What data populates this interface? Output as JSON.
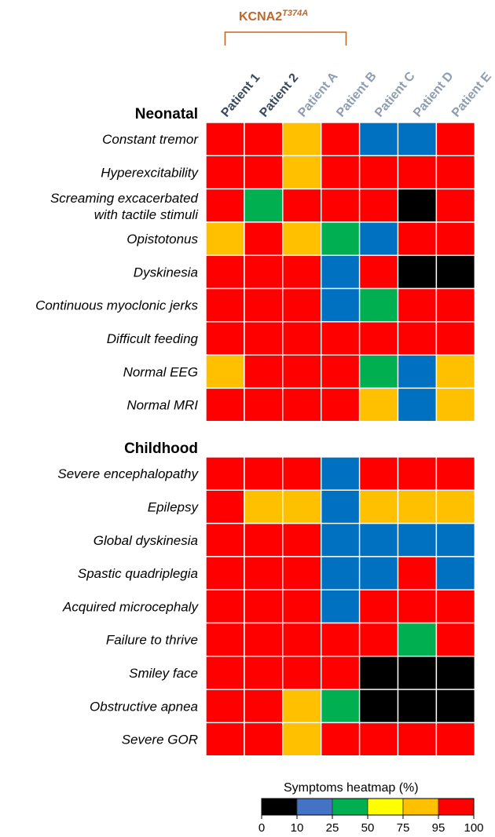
{
  "chart_data": {
    "type": "heatmap",
    "title": "",
    "group_label": {
      "text": "KCNA2",
      "superscript": "T374A",
      "color": "#C0662A",
      "columns": [
        "Patient 1",
        "Patient 2"
      ]
    },
    "columns": [
      {
        "name": "Patient 1",
        "color": "#3A4A5E"
      },
      {
        "name": "Patient 2",
        "color": "#3A4A5E"
      },
      {
        "name": "Patient A",
        "color": "#8E9DB2"
      },
      {
        "name": "Patient B",
        "color": "#8E9DB2"
      },
      {
        "name": "Patient C",
        "color": "#8E9DB2"
      },
      {
        "name": "Patient D",
        "color": "#8E9DB2"
      },
      {
        "name": "Patient E",
        "color": "#8E9DB2"
      }
    ],
    "sections": [
      {
        "title": "Neonatal",
        "rows": [
          {
            "label": "Constant tremor",
            "values": [
              100,
              100,
              95,
              100,
              25,
              25,
              100
            ]
          },
          {
            "label": "Hyperexcitability",
            "values": [
              100,
              100,
              95,
              100,
              100,
              100,
              100
            ]
          },
          {
            "label": "Screaming excacerbated\nwith tactile stimuli",
            "values": [
              100,
              50,
              100,
              100,
              100,
              10,
              100
            ]
          },
          {
            "label": "Opistotonus",
            "values": [
              95,
              100,
              95,
              50,
              25,
              100,
              100
            ]
          },
          {
            "label": "Dyskinesia",
            "values": [
              100,
              100,
              100,
              25,
              100,
              10,
              10
            ]
          },
          {
            "label": "Continuous myoclonic jerks",
            "values": [
              100,
              100,
              100,
              25,
              50,
              100,
              100
            ]
          },
          {
            "label": "Difficult feeding",
            "values": [
              100,
              100,
              100,
              100,
              100,
              100,
              100
            ]
          },
          {
            "label": "Normal EEG",
            "values": [
              95,
              100,
              100,
              100,
              50,
              25,
              95
            ]
          },
          {
            "label": "Normal MRI",
            "values": [
              100,
              100,
              100,
              100,
              95,
              25,
              95
            ]
          }
        ]
      },
      {
        "title": "Childhood",
        "rows": [
          {
            "label": "Severe encephalopathy",
            "values": [
              100,
              100,
              100,
              25,
              100,
              100,
              100
            ]
          },
          {
            "label": "Epilepsy",
            "values": [
              100,
              95,
              95,
              25,
              95,
              95,
              95
            ]
          },
          {
            "label": "Global dyskinesia",
            "values": [
              100,
              100,
              100,
              25,
              25,
              25,
              25
            ]
          },
          {
            "label": "Spastic quadriplegia",
            "values": [
              100,
              100,
              100,
              25,
              25,
              100,
              25
            ]
          },
          {
            "label": "Acquired microcephaly",
            "values": [
              100,
              100,
              100,
              25,
              100,
              100,
              100
            ]
          },
          {
            "label": "Failure to thrive",
            "values": [
              100,
              100,
              100,
              100,
              100,
              50,
              100
            ]
          },
          {
            "label": "Smiley face",
            "values": [
              100,
              100,
              100,
              100,
              10,
              10,
              10
            ]
          },
          {
            "label": "Obstructive apnea",
            "values": [
              100,
              100,
              95,
              50,
              10,
              10,
              10
            ]
          },
          {
            "label": "Severe GOR",
            "values": [
              100,
              100,
              95,
              100,
              100,
              100,
              100
            ]
          }
        ]
      }
    ],
    "colorbar": {
      "title": "Symptoms heatmap (%)",
      "bins": [
        {
          "min": 0,
          "max": 10,
          "color": "#000000"
        },
        {
          "min": 10,
          "max": 25,
          "color": "#4472C4"
        },
        {
          "min": 25,
          "max": 50,
          "color": "#00B050"
        },
        {
          "min": 50,
          "max": 75,
          "color": "#FFFF00"
        },
        {
          "min": 75,
          "max": 95,
          "color": "#FFC000"
        },
        {
          "min": 95,
          "max": 100,
          "color": "#FF0000"
        }
      ],
      "ticks": [
        "0",
        "10",
        "25",
        "50",
        "75",
        "95",
        "100"
      ]
    },
    "cell_colors": {
      "100": "#FF0000",
      "95": "#FFC000",
      "50": "#00B050",
      "25": "#0070C0",
      "10": "#000000"
    }
  }
}
